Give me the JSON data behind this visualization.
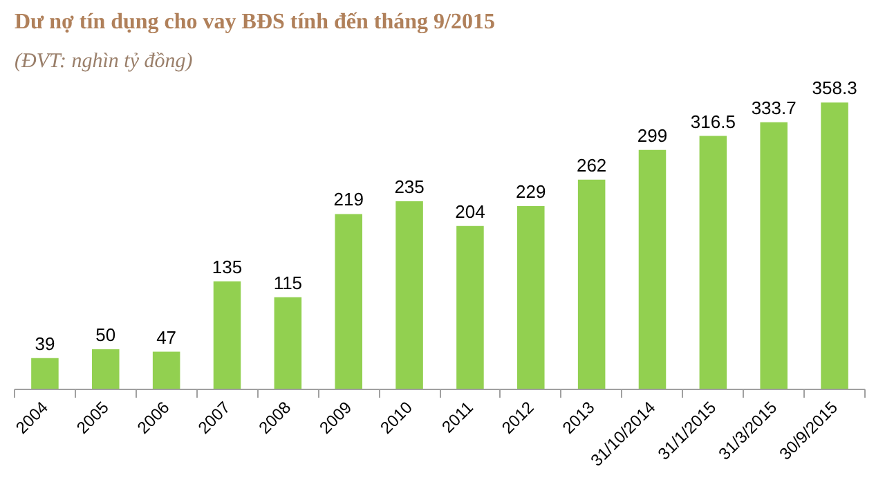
{
  "chart_data": {
    "type": "bar",
    "title": "Dư nợ tín dụng cho vay BĐS tính đến tháng 9/2015",
    "subtitle": "(ĐVT: nghìn tỷ đồng)",
    "categories": [
      "2004",
      "2005",
      "2006",
      "2007",
      "2008",
      "2009",
      "2010",
      "2011",
      "2012",
      "2013",
      "31/10/2014",
      "31/1/2015",
      "31/3/2015",
      "30/9/2015"
    ],
    "values": [
      39,
      50,
      47,
      135,
      115,
      219,
      235,
      204,
      229,
      262,
      299,
      316.5,
      333.7,
      358.3
    ],
    "color": "#92d050",
    "data_labels": true
  }
}
